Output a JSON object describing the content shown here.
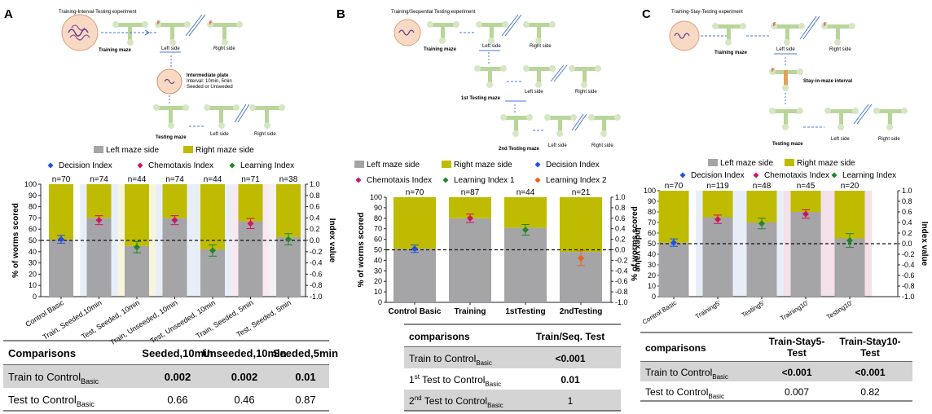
{
  "panels": {
    "A": {
      "letter": "A",
      "diagram": {
        "title": "Training-Interval-Testing experiment",
        "training_maze": "Training maze",
        "left_side": "Left side",
        "right_side": "Right side",
        "intermediate": [
          "Intermediate plate",
          "Interval: 10min, 5min",
          "Seeded or Unseeded"
        ],
        "testing_maze": "Testing maze",
        "left_side_2": "Left side",
        "right_side_2": "Right side"
      },
      "table": {
        "headers": [
          "Comparisons",
          "Seeded,10min",
          "Unseeded,10min",
          "Seeded,5min"
        ],
        "rows": [
          {
            "label": "Train to Control",
            "sub": "Basic",
            "values": [
              "0.002",
              "0.002",
              "0.01"
            ],
            "bold": true
          },
          {
            "label": "Test to Control",
            "sub": "Basic",
            "values": [
              "0.66",
              "0.46",
              "0.87"
            ],
            "bold": false
          }
        ]
      }
    },
    "B": {
      "letter": "B",
      "diagram": {
        "title": "Training/Sequential Testing experiment",
        "training_maze": "Training maze",
        "left_side": "Left side",
        "right_side": "Right side",
        "testing1": "1st Testing maze",
        "left_side_2": "Left side",
        "right_side_2": "Right side",
        "testing2": "2nd Testing maze",
        "left_side_3": "Left side",
        "right_side_3": "Right side"
      },
      "table": {
        "headers": [
          "comparisons",
          "Train/Seq. Test"
        ],
        "rows": [
          {
            "label": "Train to Control",
            "sub": "Basic",
            "values": [
              "<0.001"
            ],
            "bold": true
          },
          {
            "label": "1st Test to Control",
            "sub": "Basic",
            "values": [
              "0.01"
            ],
            "bold": true
          },
          {
            "label": "2nd Test to Control",
            "sub": "Basic",
            "values": [
              "1"
            ],
            "bold": false
          }
        ]
      }
    },
    "C": {
      "letter": "C",
      "diagram": {
        "title": "Training-Stay-Testing experiment",
        "training_maze": "Training maze",
        "left_side": "Left side",
        "right_side": "Right side",
        "stay": "Stay-in-maze interval",
        "testing_maze": "Testing maze",
        "left_side_2": "Left side",
        "right_side_2": "Right side"
      },
      "table": {
        "headers": [
          "comparisons",
          "Train-Stay5-Test",
          "Train-Stay10-Test"
        ],
        "rows": [
          {
            "label": "Train to Control",
            "sub": "Basic",
            "values": [
              "<0.001",
              "<0.001"
            ],
            "bold": true
          },
          {
            "label": "Test to Control",
            "sub": "Basic",
            "values": [
              "0.007",
              "0.82"
            ],
            "bold": false
          }
        ]
      }
    }
  },
  "chart_data": [
    {
      "panel": "A",
      "type": "bar",
      "stacked": true,
      "categories": [
        "Control Basic",
        "Train, Seeded,10min",
        "Test, Seeded, 10min",
        "Train, Unseeded, 10min",
        "Test, Unseeded, 10min",
        "Train, Seeded, 5min",
        "Test, Seeded, 5min"
      ],
      "n_labels": [
        "n=70",
        "n=74",
        "n=44",
        "n=74",
        "n=44",
        "n=71",
        "n=38"
      ],
      "series": [
        {
          "name": "Left maze side",
          "color": "#a5a5a7",
          "values": [
            51,
            70,
            45,
            70,
            42,
            67,
            53
          ]
        },
        {
          "name": "Right maze side",
          "color": "#bfbb00",
          "values": [
            49,
            30,
            55,
            30,
            58,
            33,
            47
          ]
        }
      ],
      "index_points": [
        {
          "name": "Decision Index",
          "marker": "diamond",
          "color": "#1f50e0",
          "values": [
            0.02,
            null,
            null,
            null,
            null,
            null,
            null
          ],
          "err": [
            0.07,
            null,
            null,
            null,
            null,
            null,
            null
          ]
        },
        {
          "name": "Chemotaxis Index",
          "marker": "diamond",
          "color": "#d01466",
          "values": [
            null,
            0.36,
            null,
            0.36,
            null,
            0.3,
            null
          ],
          "err": [
            null,
            0.08,
            null,
            0.08,
            null,
            0.09,
            null
          ]
        },
        {
          "name": "Learning Index",
          "marker": "diamond",
          "color": "#21862a",
          "values": [
            null,
            null,
            -0.12,
            null,
            -0.18,
            null,
            0.02
          ],
          "err": [
            null,
            null,
            0.1,
            null,
            0.1,
            null,
            0.1
          ]
        }
      ],
      "background_bands": [
        "#ffffff",
        "#e8eef8",
        "#f6f5dc",
        "#e8eef8",
        "#e8eef8",
        "#f7e9ef",
        "#f2f2f2"
      ],
      "ylabel": "% of worms scored",
      "y2label": "Index value",
      "ylim": [
        0,
        100
      ],
      "y2lim": [
        -1.0,
        1.0
      ],
      "yticks": [
        0,
        10,
        20,
        30,
        40,
        50,
        60,
        70,
        80,
        90,
        100
      ],
      "y2ticks": [
        "1.0",
        "0.8",
        "0.6",
        "0.4",
        "0.2",
        "0.0",
        "-0.2",
        "-0.4",
        "-0.6",
        "-0.8",
        "-1.0"
      ],
      "reference_line": 50,
      "legend": [
        "Left maze side",
        "Right maze side",
        "Decision Index",
        "Chemotaxis Index",
        "Learning Index"
      ]
    },
    {
      "panel": "B",
      "type": "bar",
      "stacked": true,
      "categories": [
        "Control Basic",
        "Training",
        "1stTesting",
        "2ndTesting"
      ],
      "n_labels": [
        "n=70",
        "n=87",
        "n=44",
        "n=21"
      ],
      "series": [
        {
          "name": "Left maze side",
          "color": "#a5a5a7",
          "values": [
            51,
            80,
            71,
            48
          ]
        },
        {
          "name": "Right maze side",
          "color": "#bfbb00",
          "values": [
            49,
            20,
            29,
            52
          ]
        }
      ],
      "index_points": [
        {
          "name": "Decision Index",
          "marker": "diamond",
          "color": "#1f50e0",
          "values": [
            0.02,
            null,
            null,
            null
          ],
          "err": [
            0.07,
            null,
            null,
            null
          ]
        },
        {
          "name": "Chemotaxis Index",
          "marker": "diamond",
          "color": "#d01466",
          "values": [
            null,
            0.6,
            null,
            null
          ],
          "err": [
            null,
            0.08,
            null,
            null
          ]
        },
        {
          "name": "Learning Index 1",
          "marker": "diamond",
          "color": "#21862a",
          "values": [
            null,
            null,
            0.38,
            null
          ],
          "err": [
            null,
            null,
            0.1,
            null
          ]
        },
        {
          "name": "Learning Index 2",
          "marker": "diamond",
          "color": "#e8631c",
          "values": [
            null,
            null,
            null,
            -0.16
          ],
          "err": [
            null,
            null,
            null,
            0.14
          ]
        }
      ],
      "ylabel": "% of worms scored",
      "y2label": "Index value",
      "ylim": [
        0,
        100
      ],
      "y2lim": [
        -1.0,
        1.0
      ],
      "yticks": [
        0,
        10,
        20,
        30,
        40,
        50,
        60,
        70,
        80,
        90,
        100
      ],
      "y2ticks": [
        "1.0",
        "0.8",
        "0.6",
        "0.4",
        "0.2",
        "0.0",
        "-0.2",
        "-0.4",
        "-0.6",
        "-0.8",
        "-1.0"
      ],
      "reference_line": 50,
      "legend": [
        "Left maze side",
        "Right maze side",
        "Decision Index",
        "Chemotaxis Index",
        "Learning Index 1",
        "Learning Index 2"
      ]
    },
    {
      "panel": "C",
      "type": "bar",
      "stacked": true,
      "categories": [
        "Control Basic",
        "Training5'",
        "Testing5'",
        "Training10'",
        "Testing10'"
      ],
      "n_labels": [
        "n=70",
        "n=119",
        "n=48",
        "n=45",
        "n=20"
      ],
      "series": [
        {
          "name": "Left maze side",
          "color": "#a5a5a7",
          "values": [
            51,
            75,
            70,
            80,
            55
          ]
        },
        {
          "name": "Right maze side",
          "color": "#bfbb00",
          "values": [
            49,
            25,
            30,
            20,
            45
          ]
        }
      ],
      "index_points": [
        {
          "name": "Decision Index",
          "marker": "diamond",
          "color": "#1f50e0",
          "values": [
            0.02,
            null,
            null,
            null,
            null
          ],
          "err": [
            0.07,
            null,
            null,
            null,
            null
          ]
        },
        {
          "name": "Chemotaxis Index",
          "marker": "diamond",
          "color": "#d01466",
          "values": [
            null,
            0.46,
            null,
            0.56,
            null
          ],
          "err": [
            null,
            0.08,
            null,
            0.08,
            null
          ]
        },
        {
          "name": "Learning Index",
          "marker": "diamond",
          "color": "#21862a",
          "values": [
            null,
            null,
            0.38,
            null,
            0.06
          ],
          "err": [
            null,
            null,
            0.1,
            null,
            0.13
          ]
        }
      ],
      "background_bands": [
        "#ffffff",
        "#e8eef8",
        "#e8eef8",
        "#f3e0e8",
        "#f3e0e8"
      ],
      "ylabel": "% of worms scored",
      "y2label": "Index value",
      "ylim": [
        0,
        100
      ],
      "y2lim": [
        -1.0,
        1.0
      ],
      "yticks": [
        0,
        10,
        20,
        30,
        40,
        50,
        60,
        70,
        80,
        90,
        100
      ],
      "y2ticks": [
        "1.0",
        "0.8",
        "0.6",
        "0.4",
        "0.2",
        "0.0",
        "-0.2",
        "-0.4",
        "-0.6",
        "-0.8",
        "-1.0"
      ],
      "reference_line": 50,
      "legend": [
        "Left maze side",
        "Right maze side",
        "Decision Index",
        "Chemotaxis Index",
        "Learning Index"
      ]
    }
  ]
}
